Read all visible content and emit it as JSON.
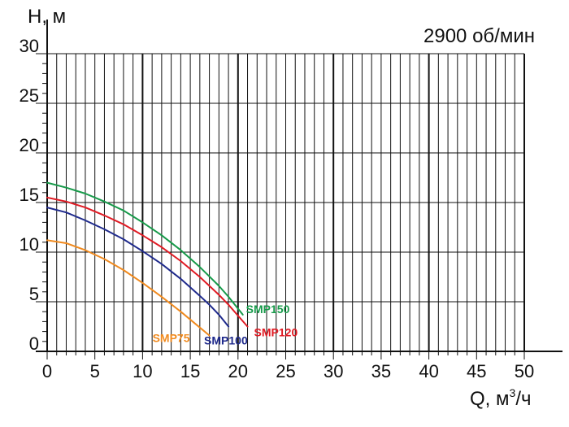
{
  "chart_data": {
    "type": "line",
    "ylabel": "H, м",
    "xlabel": "Q, м",
    "xlabel_sup": "3",
    "xlabel_tail": "/ч",
    "speed": "2900 об/мин",
    "xlim": [
      0,
      50
    ],
    "ylim": [
      0,
      30
    ],
    "x_ticks": [
      "0",
      "5",
      "10",
      "15",
      "20",
      "25",
      "30",
      "35",
      "40",
      "45",
      "50"
    ],
    "y_ticks": [
      "0",
      "5",
      "10",
      "15",
      "20",
      "25",
      "30"
    ],
    "grid": true,
    "series": [
      {
        "name": "SMP75",
        "color": "#f08a1e",
        "x": [
          0,
          2,
          4,
          6,
          8,
          10,
          12,
          14,
          16,
          17
        ],
        "y": [
          11.2,
          10.9,
          10.2,
          9.3,
          8.2,
          6.9,
          5.5,
          4.0,
          2.4,
          1.6
        ]
      },
      {
        "name": "SMP100",
        "color": "#1f2a8c",
        "x": [
          0,
          2,
          4,
          6,
          8,
          10,
          12,
          14,
          16,
          17,
          18,
          19
        ],
        "y": [
          14.5,
          14.0,
          13.2,
          12.3,
          11.3,
          10.1,
          8.8,
          7.3,
          5.6,
          4.7,
          3.7,
          2.5
        ]
      },
      {
        "name": "SMP120",
        "color": "#e01b24",
        "x": [
          0,
          2,
          4,
          6,
          8,
          10,
          12,
          14,
          16,
          18,
          19,
          20,
          21
        ],
        "y": [
          15.5,
          15.1,
          14.5,
          13.7,
          12.8,
          11.7,
          10.5,
          9.1,
          7.5,
          5.7,
          4.7,
          3.6,
          2.5
        ]
      },
      {
        "name": "SMP150",
        "color": "#179a4a",
        "x": [
          0,
          2,
          4,
          6,
          8,
          10,
          12,
          14,
          16,
          18,
          19,
          20,
          20.5
        ],
        "y": [
          17.0,
          16.5,
          15.9,
          15.1,
          14.2,
          13.0,
          11.7,
          10.2,
          8.5,
          6.6,
          5.5,
          4.3,
          3.7
        ]
      }
    ]
  }
}
